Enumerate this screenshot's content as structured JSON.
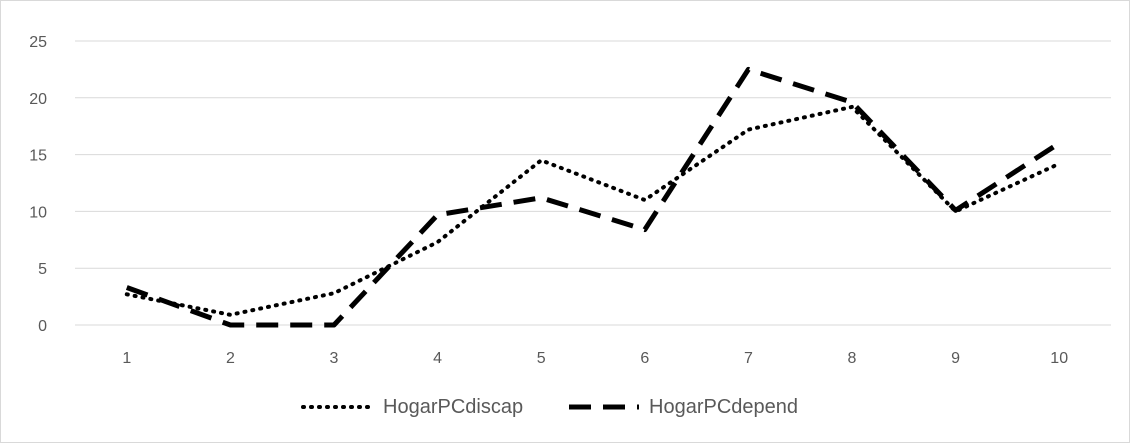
{
  "chart_data": {
    "type": "line",
    "title": "",
    "xlabel": "",
    "ylabel": "",
    "categories": [
      "1",
      "2",
      "3",
      "4",
      "5",
      "6",
      "7",
      "8",
      "9",
      "10"
    ],
    "ylim": [
      0,
      25
    ],
    "yticks": [
      0,
      5,
      10,
      15,
      20,
      25
    ],
    "grid": "horizontal",
    "legend_position": "bottom",
    "series": [
      {
        "name": "HogarPCdiscap",
        "style": "dotted",
        "color": "#000000",
        "values": [
          2.7,
          0.9,
          2.8,
          7.3,
          14.5,
          11.0,
          17.2,
          19.2,
          10.0,
          14.2
        ]
      },
      {
        "name": "HogarPCdepend",
        "style": "dashed",
        "color": "#000000",
        "values": [
          3.3,
          0.0,
          0.0,
          9.7,
          11.2,
          8.4,
          22.5,
          19.6,
          10.1,
          16.0
        ]
      }
    ],
    "gridline_color": "#d9d9d9",
    "text_color": "#595959"
  }
}
